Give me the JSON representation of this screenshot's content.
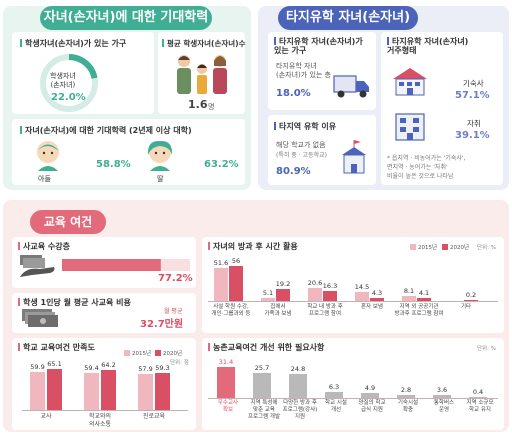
{
  "colors": {
    "green": "#3fae95",
    "blue": "#4b63b8",
    "pink": "#e26a7b",
    "light_pink": "#f0b7bf",
    "dark_pink": "#d94f63",
    "gray": "#a6a6a6",
    "blue_val": "#6c7fc4"
  },
  "section_a": {
    "title": "자녀(손자녀)에 대한 기대학력",
    "households": {
      "title": "학생자녀(손자녀)가 있는 가구",
      "center_label": "학생자녀\n(손자녀)",
      "value": "22.0%",
      "fraction": 0.22
    },
    "avg_children": {
      "title": "평균 학생자녀(손자녀)수",
      "value": "1.6",
      "unit": "명"
    },
    "expectation": {
      "title": "자녀(손자녀)에 대한 기대학력 (2년제 이상 대학)",
      "son_label": "아들",
      "son_value": "58.8%",
      "daughter_label": "딸",
      "daughter_value": "63.2%"
    }
  },
  "section_b": {
    "title": "타지유학 자녀(손자녀)",
    "households": {
      "title": "타지유학 자녀(손자녀)가\n있는 가구",
      "sub": "타지유학 자녀\n(손자녀)가 있는 층",
      "value": "18.0%"
    },
    "reason": {
      "title": "타지역 유학 이유",
      "sub": "해당 학교가 없음",
      "sub2": "(특히 중 · 고등학교)",
      "value": "80.9%"
    },
    "residence": {
      "title": "타지유학 자녀(손자녀)\n거주형태",
      "dorm_label": "기숙사",
      "dorm_value": "57.1%",
      "self_label": "자취",
      "self_value": "39.1%",
      "note": "* 읍지역 · 비농어가는 '기숙사',\n면지역 · 농어가는 '자취'\n비율이 높은 것으로 나타남"
    }
  },
  "section_c": {
    "title": "교육 여건",
    "private": {
      "title": "사교육 수강층",
      "value": "77.2%",
      "fraction": 0.772
    },
    "cost": {
      "title": "학생 1인당 월 평균 사교육 비용",
      "caption": "월 평균",
      "value": "32.7만원"
    },
    "satisfaction": {
      "title": "학교 교육여건 만족도",
      "legend": [
        "2015년",
        "2020년"
      ],
      "unit": "단위: 점",
      "categories": [
        "교사",
        "학교와의\n의사소통",
        "진로교육"
      ],
      "v2015": [
        59.9,
        59.4,
        57.9
      ],
      "v2020": [
        65.1,
        64.2,
        59.3
      ]
    },
    "time": {
      "title": "자녀의 방과 후 시간 활용",
      "legend": [
        "2015년",
        "2020년"
      ],
      "unit": "단위: %",
      "categories": [
        "사설 학원 수강,\n개인·그룹과외 등",
        "집에서\n가족과 보냄",
        "학교 내 방과 후\n프로그램 참여",
        "혼자 보냄",
        "지역 외 공공기관\n방과후 프로그램 참여",
        "기타"
      ],
      "v2015": [
        51.6,
        5.1,
        20.6,
        14.5,
        8.1,
        null
      ],
      "v2020": [
        56.0,
        19.2,
        16.3,
        4.3,
        4.1,
        0.2
      ]
    },
    "needs": {
      "title": "농촌교육여건 개선 위한 필요사항",
      "unit": "단위: %",
      "categories": [
        "우수교사\n확보",
        "지역 특성에\n맞춘 교육\n프로그램 개발",
        "다양한 방과 후\n프로그램(강사)\n지원",
        "학교 시설\n개선",
        "양질의 학교\n급식 지원",
        "기숙시설\n확충",
        "통학버스\n운영",
        "지역 소규모\n학교 유지"
      ],
      "values": [
        31.4,
        25.7,
        24.8,
        6.3,
        4.9,
        2.8,
        3.6,
        0.4
      ]
    }
  }
}
